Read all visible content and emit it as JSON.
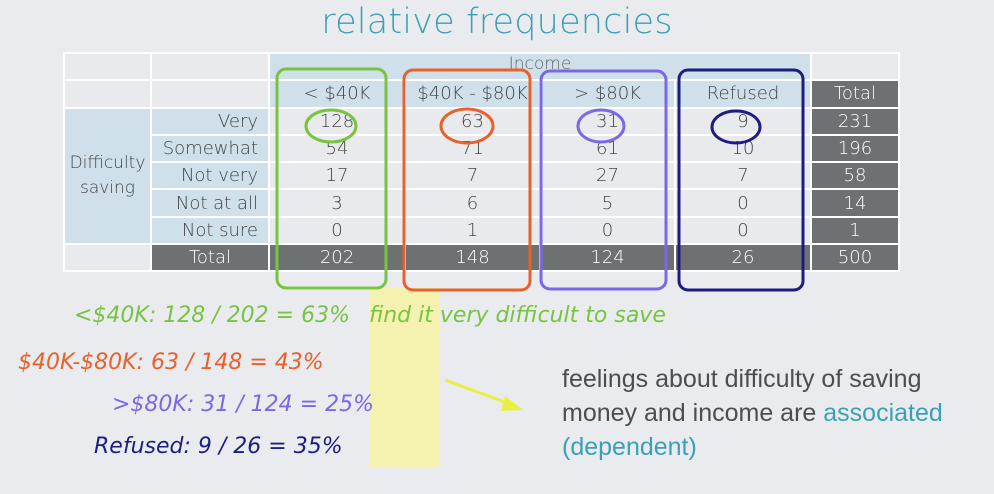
{
  "title": "relative frequencies",
  "table": {
    "col_group_label": "Income",
    "row_group_label": [
      "Difficulty",
      "saving"
    ],
    "col_headers": [
      "< $40K",
      "$40K - $80K",
      "> $80K",
      "Refused",
      "Total"
    ],
    "rows": [
      {
        "label": "Very",
        "values": [
          "128",
          "63",
          "31",
          "9",
          "231"
        ]
      },
      {
        "label": "Somewhat",
        "values": [
          "54",
          "71",
          "61",
          "10",
          "196"
        ]
      },
      {
        "label": "Not very",
        "values": [
          "17",
          "7",
          "27",
          "7",
          "58"
        ]
      },
      {
        "label": "Not at all",
        "values": [
          "3",
          "6",
          "5",
          "0",
          "14"
        ]
      },
      {
        "label": "Not sure",
        "values": [
          "0",
          "1",
          "0",
          "0",
          "1"
        ]
      }
    ],
    "total_row": {
      "label": "Total",
      "values": [
        "202",
        "148",
        "124",
        "26",
        "500"
      ]
    }
  },
  "annotations": {
    "line1": "<$40K: 128 / 202 =",
    "pct1": "63%",
    "line1_suffix": "find it very difficult to save",
    "line2": "$40K-$80K: 63 / 148 =",
    "pct2": "43%",
    "line3": ">$80K: 31 / 124 =",
    "pct3": "25%",
    "line4": "Refused: 9 / 26 =",
    "pct4": "35%"
  },
  "conclusion": {
    "part1": "feelings about difficulty of saving money and income are",
    "highlight": "associated",
    "part2": "(dependent)"
  },
  "colors": {
    "teal": "#3aa1b4",
    "green": "#78c341",
    "orange": "#e8602c",
    "purple": "#7a68e6",
    "navy": "#1d1d80",
    "highlight_yellow": "#f7f3a5"
  }
}
